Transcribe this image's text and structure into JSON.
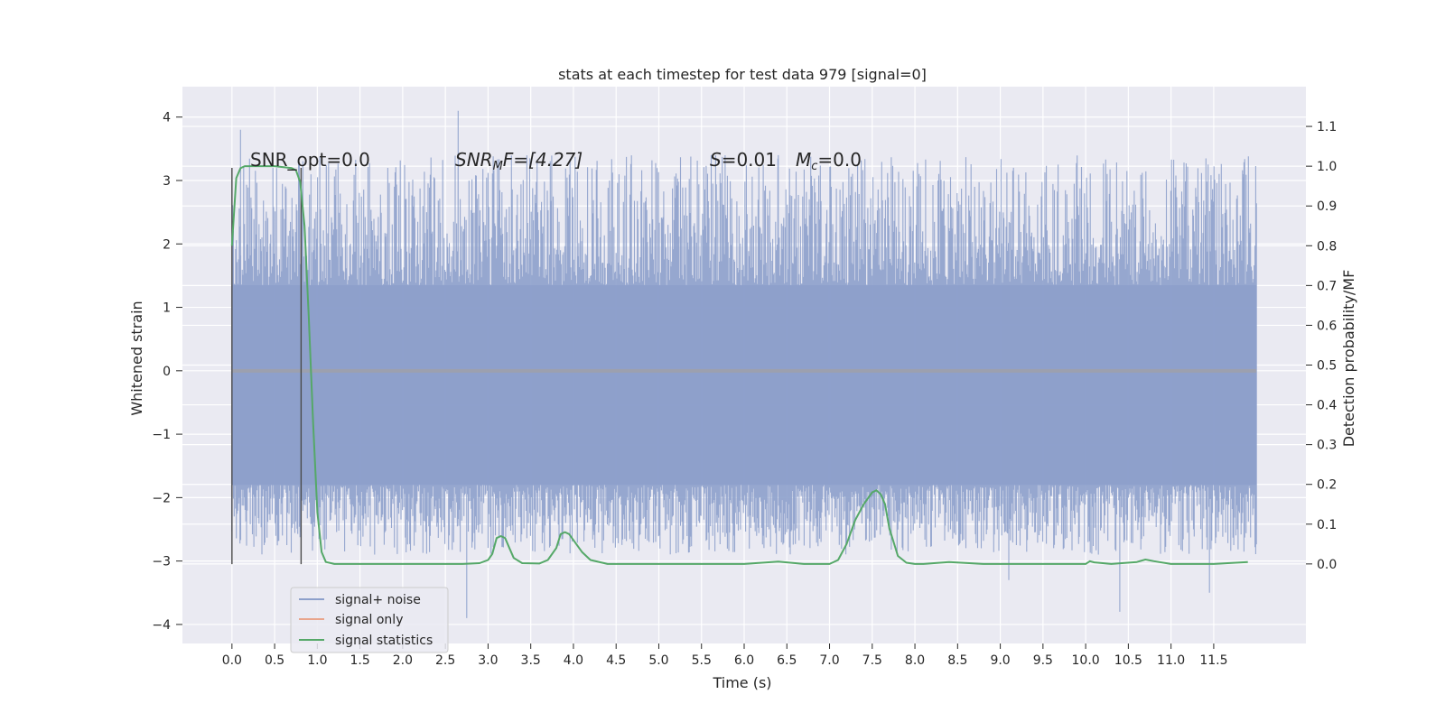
{
  "chart_data": {
    "type": "line",
    "title": "stats at each timestep for test data 979 [signal=0]",
    "xlabel": "Time (s)",
    "ylabel_left": "Whitened strain",
    "ylabel_right": "Detection probability/MF",
    "xlim": [
      -0.58,
      12.58
    ],
    "ylim_left": [
      -4.3,
      4.48
    ],
    "ylim_right": [
      -0.2,
      1.2
    ],
    "x_ticks": [
      "0.0",
      "0.5",
      "1.0",
      "1.5",
      "2.0",
      "2.5",
      "3.0",
      "3.5",
      "4.0",
      "4.5",
      "5.0",
      "5.5",
      "6.0",
      "6.5",
      "7.0",
      "7.5",
      "8.0",
      "8.5",
      "9.0",
      "9.5",
      "10.0",
      "10.5",
      "11.0",
      "11.5"
    ],
    "y_ticks_left": [
      "4",
      "3",
      "2",
      "1",
      "0",
      "−1",
      "−2",
      "−3",
      "−4"
    ],
    "y_ticks_right": [
      "1.1",
      "1.0",
      "0.9",
      "0.8",
      "0.7",
      "0.6",
      "0.5",
      "0.4",
      "0.3",
      "0.2",
      "0.1",
      "0.0"
    ],
    "annotations": {
      "snr_opt": "SNR_opt=0.0",
      "snr_mf_sym": "SNR",
      "snr_mf_sub": "M",
      "snr_mf_rest": "F=[4.27]",
      "s_sym": "S",
      "s_rest": "=0.01",
      "mc_sym": "M",
      "mc_sub": "c",
      "mc_rest": "=0.0"
    },
    "legend": {
      "placement": "lower-left",
      "entries": [
        {
          "label": "signal+ noise",
          "color": "#8da0cb"
        },
        {
          "label": "signal only",
          "color": "#e9a58c"
        },
        {
          "label": "signal statistics",
          "color": "#55a868"
        }
      ]
    },
    "grid": true,
    "series": [
      {
        "name": "signal+ noise",
        "axis": "left",
        "kind": "dense-noise",
        "x_range": [
          0.0,
          12.0
        ],
        "core_band": [
          -1.8,
          1.35
        ],
        "typical_peak_range": [
          -2.9,
          3.4
        ],
        "extreme_values": [
          {
            "x": 0.1,
            "y": 3.8
          },
          {
            "x": 2.65,
            "y": 4.1
          },
          {
            "x": 2.75,
            "y": -3.9
          },
          {
            "x": 6.4,
            "y": 3.4
          },
          {
            "x": 9.1,
            "y": -3.3
          },
          {
            "x": 10.4,
            "y": -3.8
          },
          {
            "x": 11.45,
            "y": -3.5
          },
          {
            "x": 11.85,
            "y": 3.1
          }
        ],
        "color": "#8da0cb"
      },
      {
        "name": "signal only",
        "axis": "left",
        "x": [
          0.0,
          12.0
        ],
        "y": [
          0.0,
          0.0
        ],
        "color": "#e9a58c"
      },
      {
        "name": "signal statistics",
        "axis": "right",
        "x": [
          0.0,
          0.05,
          0.1,
          0.15,
          0.2,
          0.3,
          0.5,
          0.7,
          0.75,
          0.8,
          0.85,
          0.9,
          0.95,
          1.0,
          1.05,
          1.1,
          1.2,
          1.4,
          2.0,
          2.7,
          2.9,
          3.0,
          3.05,
          3.1,
          3.15,
          3.2,
          3.25,
          3.3,
          3.4,
          3.6,
          3.7,
          3.8,
          3.85,
          3.9,
          3.95,
          4.0,
          4.1,
          4.2,
          4.4,
          5.0,
          5.5,
          6.0,
          6.4,
          6.7,
          7.0,
          7.1,
          7.2,
          7.3,
          7.4,
          7.5,
          7.55,
          7.6,
          7.65,
          7.7,
          7.8,
          7.9,
          8.0,
          8.1,
          8.4,
          8.8,
          9.5,
          10.0,
          10.05,
          10.1,
          10.3,
          10.6,
          10.7,
          10.8,
          11.0,
          11.5,
          11.9
        ],
        "y": [
          0.8,
          0.97,
          0.995,
          1.0,
          1.0,
          1.0,
          1.0,
          0.995,
          0.99,
          0.96,
          0.85,
          0.62,
          0.36,
          0.13,
          0.03,
          0.005,
          0.0,
          0.0,
          0.0,
          0.0,
          0.002,
          0.01,
          0.025,
          0.065,
          0.07,
          0.065,
          0.04,
          0.015,
          0.002,
          0.001,
          0.01,
          0.04,
          0.075,
          0.08,
          0.075,
          0.06,
          0.03,
          0.01,
          0.0,
          0.0,
          0.0,
          0.0,
          0.006,
          0.0,
          0.0,
          0.01,
          0.05,
          0.11,
          0.15,
          0.18,
          0.185,
          0.175,
          0.15,
          0.09,
          0.02,
          0.003,
          0.0,
          0.0,
          0.005,
          0.0,
          0.0,
          0.0,
          0.007,
          0.004,
          0.0,
          0.005,
          0.011,
          0.007,
          0.0,
          0.0,
          0.005
        ],
        "color": "#55a868"
      }
    ]
  }
}
